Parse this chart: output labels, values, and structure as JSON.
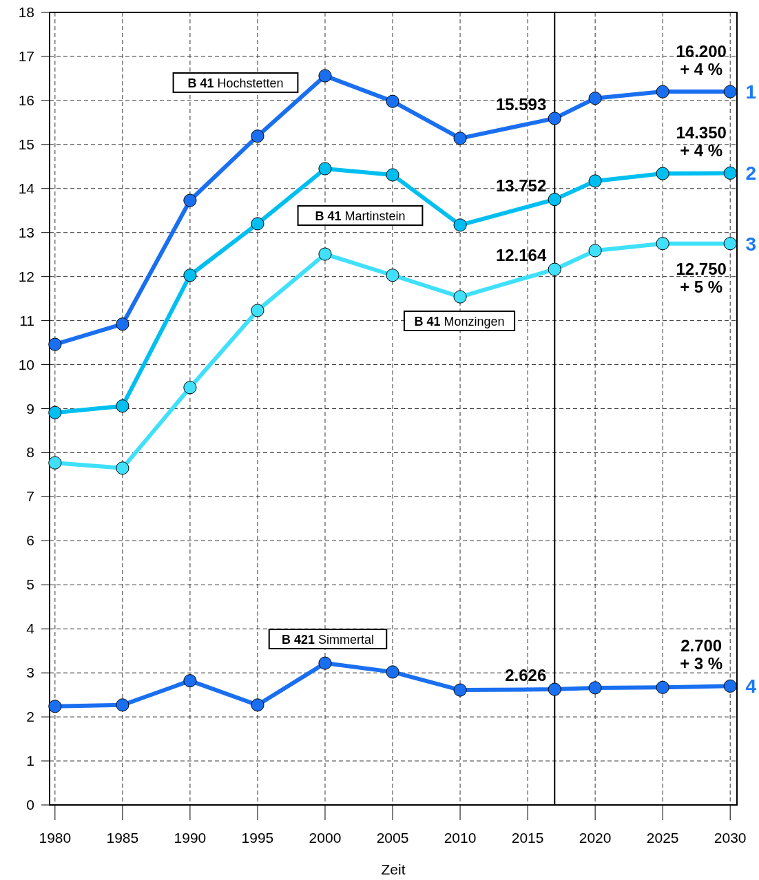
{
  "chart_data": {
    "type": "line",
    "xlabel": "Zeit",
    "xlim": [
      1979.6,
      2030.5
    ],
    "xticks": [
      1980,
      1985,
      1990,
      1995,
      2000,
      2005,
      2010,
      2015,
      2020,
      2025,
      2030
    ],
    "ylim": [
      0,
      18
    ],
    "yticks": [
      0,
      1,
      2,
      3,
      4,
      5,
      6,
      7,
      8,
      9,
      10,
      11,
      12,
      13,
      14,
      15,
      16,
      17,
      18
    ],
    "grid": true,
    "marker": "circle",
    "line_style": "solid",
    "x": [
      1980,
      1985,
      1990,
      1995,
      2000,
      2005,
      2010,
      2017,
      2020,
      2025,
      2030
    ],
    "series": [
      {
        "name": "B 41 Hochstetten",
        "color": "#1a6ff0",
        "values": [
          10.46,
          10.92,
          13.73,
          15.19,
          16.56,
          15.98,
          15.14,
          15.593,
          16.05,
          16.2,
          16.2
        ],
        "value_labels": [
          null,
          null,
          null,
          null,
          null,
          null,
          null,
          "15.593",
          null,
          null,
          "16.200\n+ 4 %"
        ]
      },
      {
        "name": "B 41 Martinstein",
        "color": "#00bff0",
        "values": [
          8.91,
          9.06,
          12.03,
          13.2,
          14.45,
          14.31,
          13.17,
          13.752,
          14.17,
          14.34,
          14.35
        ],
        "value_labels": [
          null,
          null,
          null,
          null,
          null,
          null,
          null,
          "13.752",
          null,
          null,
          "14.350\n+ 4 %"
        ]
      },
      {
        "name": "B 41 Monzingen",
        "color": "#40e0fa",
        "values": [
          7.77,
          7.65,
          9.48,
          11.23,
          12.51,
          12.03,
          11.54,
          12.164,
          12.59,
          12.75,
          12.75
        ],
        "value_labels": [
          null,
          null,
          null,
          null,
          null,
          null,
          null,
          "12.164",
          null,
          null,
          "12.750\n+ 5 %"
        ]
      },
      {
        "name": "B 421 Simmertal",
        "color": "#1a6ff0",
        "values": [
          2.24,
          2.27,
          2.82,
          2.27,
          3.22,
          3.02,
          2.61,
          2.626,
          2.66,
          2.67,
          2.7
        ],
        "value_labels": [
          null,
          null,
          null,
          null,
          null,
          null,
          null,
          "2.626",
          null,
          null,
          "2.700\n+ 3 %"
        ]
      }
    ],
    "ref_lines": [
      {
        "axis": "x",
        "value": 2017,
        "color": "#000000",
        "line_style": "solid"
      }
    ],
    "annotations": [
      "1",
      "2",
      "3",
      "4"
    ]
  }
}
